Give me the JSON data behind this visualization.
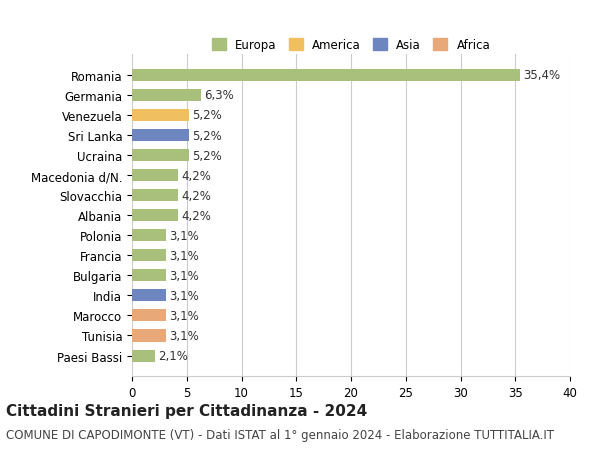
{
  "countries": [
    "Romania",
    "Germania",
    "Venezuela",
    "Sri Lanka",
    "Ucraina",
    "Macedonia d/N.",
    "Slovacchia",
    "Albania",
    "Polonia",
    "Francia",
    "Bulgaria",
    "India",
    "Marocco",
    "Tunisia",
    "Paesi Bassi"
  ],
  "values": [
    35.4,
    6.3,
    5.2,
    5.2,
    5.2,
    4.2,
    4.2,
    4.2,
    3.1,
    3.1,
    3.1,
    3.1,
    3.1,
    3.1,
    2.1
  ],
  "labels": [
    "35,4%",
    "6,3%",
    "5,2%",
    "5,2%",
    "5,2%",
    "4,2%",
    "4,2%",
    "4,2%",
    "3,1%",
    "3,1%",
    "3,1%",
    "3,1%",
    "3,1%",
    "3,1%",
    "2,1%"
  ],
  "continents": [
    "Europa",
    "Europa",
    "America",
    "Asia",
    "Europa",
    "Europa",
    "Europa",
    "Europa",
    "Europa",
    "Europa",
    "Europa",
    "Asia",
    "Africa",
    "Africa",
    "Europa"
  ],
  "continent_colors": {
    "Europa": "#a8c07c",
    "America": "#f0c060",
    "Asia": "#6e86c0",
    "Africa": "#e8a878"
  },
  "legend_order": [
    "Europa",
    "America",
    "Asia",
    "Africa"
  ],
  "title": "Cittadini Stranieri per Cittadinanza - 2024",
  "subtitle": "COMUNE DI CAPODIMONTE (VT) - Dati ISTAT al 1° gennaio 2024 - Elaborazione TUTTITALIA.IT",
  "xlim": [
    0,
    40
  ],
  "xticks": [
    0,
    5,
    10,
    15,
    20,
    25,
    30,
    35,
    40
  ],
  "background_color": "#ffffff",
  "grid_color": "#cccccc",
  "bar_height": 0.6,
  "label_fontsize": 8.5,
  "tick_fontsize": 8.5,
  "title_fontsize": 11,
  "subtitle_fontsize": 8.5
}
